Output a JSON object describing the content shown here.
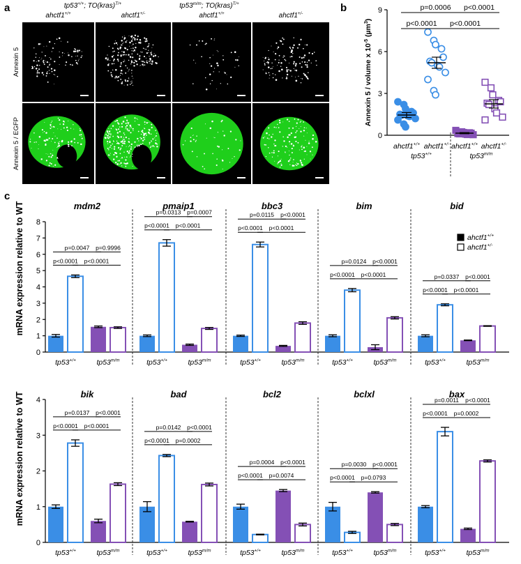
{
  "colors": {
    "blue": "#3a8ee6",
    "purple": "#8450b5",
    "green": "#22e61e",
    "microscopy_bg": "#000000",
    "annexin_white": "#ffffff"
  },
  "panel_labels": [
    "a",
    "b",
    "c"
  ],
  "panel_a": {
    "group_headers": [
      {
        "base": "tp53",
        "sup": "+/+",
        "rest": "; TO(kras)",
        "rest_sup": "T/+"
      },
      {
        "base": "tp53",
        "sup": "m/m",
        "rest": "; TO(kras)",
        "rest_sup": "T/+"
      }
    ],
    "column_headers": [
      {
        "base": "ahctf1",
        "sup": "+/+"
      },
      {
        "base": "ahctf1",
        "sup": "+/-"
      },
      {
        "base": "ahctf1",
        "sup": "+/+"
      },
      {
        "base": "ahctf1",
        "sup": "+/-"
      }
    ],
    "row_labels": [
      "Annexin 5",
      "Annexin 5 / EGFP"
    ]
  },
  "panel_c": {
    "ylabel": "mRNA expression relative to WT",
    "legend": [
      {
        "base": "ahctf1",
        "sup": "+/+",
        "style": "filled"
      },
      {
        "base": "ahctf1",
        "sup": "+/-",
        "style": "open"
      }
    ],
    "xgroups": [
      {
        "base": "tp53",
        "sup": "+/+"
      },
      {
        "base": "tp53",
        "sup": "m/m"
      }
    ]
  },
  "chart_data": [
    {
      "panel": "b",
      "type": "scatter",
      "ylabel": "Annexin 5 / volume x 10",
      "ylabel_sup": "-5",
      "ylabel_unit": " (µm",
      "ylabel_unit_sup": "3",
      "ylabel_close": ")",
      "ylim": [
        0,
        9
      ],
      "yticks": [
        0,
        3,
        6,
        9
      ],
      "categories": [
        {
          "base": "ahctf1",
          "sup": "+/+"
        },
        {
          "base": "ahctf1",
          "sup": "+/-"
        },
        {
          "base": "ahctf1",
          "sup": "+/+"
        },
        {
          "base": "ahctf1",
          "sup": "+/-"
        }
      ],
      "group_labels": [
        {
          "base": "tp53",
          "sup": "+/+"
        },
        {
          "base": "tp53",
          "sup": "m/m"
        }
      ],
      "series": [
        {
          "marker": "circle",
          "fill": "filled",
          "color": "blue",
          "mean": 1.45,
          "sem": 0.18,
          "values": [
            2.4,
            2.2,
            1.9,
            1.7,
            1.6,
            1.5,
            1.45,
            1.4,
            1.35,
            1.2,
            1.1,
            0.8,
            0.6
          ]
        },
        {
          "marker": "circle",
          "fill": "open",
          "color": "blue",
          "mean": 5.2,
          "sem": 0.4,
          "values": [
            7.4,
            6.8,
            6.5,
            6.2,
            5.6,
            5.3,
            5.2,
            5.0,
            4.9,
            4.5,
            4.0,
            3.2,
            2.9
          ]
        },
        {
          "marker": "square",
          "fill": "filled",
          "color": "purple",
          "mean": 0.15,
          "sem": 0.04,
          "values": [
            0.35,
            0.25,
            0.2,
            0.18,
            0.15,
            0.12,
            0.1,
            0.08,
            0.05,
            0.04
          ]
        },
        {
          "marker": "square",
          "fill": "open",
          "color": "purple",
          "mean": 2.25,
          "sem": 0.3,
          "values": [
            3.8,
            3.4,
            2.9,
            2.5,
            2.4,
            2.3,
            2.2,
            1.9,
            1.6,
            1.3,
            1.1
          ]
        }
      ],
      "comparisons": [
        {
          "from": 0,
          "to": 1,
          "label": "p<0.0001",
          "level": 0
        },
        {
          "from": 1,
          "to": 3,
          "label": "p<0.0001",
          "level": 0
        },
        {
          "from": 0,
          "to": 2,
          "label": "p=0.0006",
          "level": 1
        },
        {
          "from": 2,
          "to": 3,
          "label": "p<0.0001",
          "level": 1
        }
      ]
    },
    {
      "panel": "c",
      "type": "bar",
      "gene": "mdm2",
      "ylim": [
        0,
        8
      ],
      "yticks": [
        0,
        1,
        2,
        3,
        4,
        5,
        6,
        7,
        8
      ],
      "values": [
        1.0,
        4.65,
        1.55,
        1.5
      ],
      "errors": [
        0.08,
        0.08,
        0.05,
        0.05
      ],
      "pvalues": [
        "p<0.0001",
        "p<0.0001",
        "p=0.0047",
        "p=0.9996"
      ]
    },
    {
      "panel": "c",
      "type": "bar",
      "gene": "pmaip1",
      "ylim": [
        0,
        8
      ],
      "values": [
        1.0,
        6.7,
        0.45,
        1.45
      ],
      "errors": [
        0.05,
        0.2,
        0.04,
        0.06
      ],
      "pvalues": [
        "p<0.0001",
        "p<0.0001",
        "p=0.0313",
        "p=0.0007"
      ]
    },
    {
      "panel": "c",
      "type": "bar",
      "gene": "bbc3",
      "ylim": [
        0,
        8
      ],
      "values": [
        1.0,
        6.6,
        0.38,
        1.78
      ],
      "errors": [
        0.04,
        0.15,
        0.03,
        0.08
      ],
      "pvalues": [
        "p<0.0001",
        "p<0.0001",
        "p=0.0115",
        "p<0.0001"
      ]
    },
    {
      "panel": "c",
      "type": "bar",
      "gene": "bim",
      "ylim": [
        0,
        8
      ],
      "values": [
        1.0,
        3.8,
        0.3,
        2.1
      ],
      "errors": [
        0.06,
        0.1,
        0.15,
        0.07
      ],
      "pvalues": [
        "p<0.0001",
        "p<0.0001",
        "p=0.0124",
        "p<0.0001"
      ]
    },
    {
      "panel": "c",
      "type": "bar",
      "gene": "bid",
      "ylim": [
        0,
        8
      ],
      "values": [
        1.0,
        2.9,
        0.72,
        1.6
      ],
      "errors": [
        0.06,
        0.06,
        0.02,
        0.02
      ],
      "pvalues": [
        "p<0.0001",
        "p<0.0001",
        "p=0.0337",
        "p<0.0001"
      ]
    },
    {
      "panel": "c",
      "type": "bar",
      "gene": "bik",
      "ylim": [
        0,
        4
      ],
      "yticks": [
        0,
        1,
        2,
        3,
        4
      ],
      "values": [
        1.0,
        2.78,
        0.6,
        1.63
      ],
      "errors": [
        0.05,
        0.09,
        0.05,
        0.04
      ],
      "pvalues": [
        "p<0.0001",
        "p<0.0001",
        "p=0.0137",
        "p<0.0001"
      ]
    },
    {
      "panel": "c",
      "type": "bar",
      "gene": "bad",
      "ylim": [
        0,
        4
      ],
      "values": [
        1.0,
        2.43,
        0.58,
        1.62
      ],
      "errors": [
        0.14,
        0.03,
        0.01,
        0.04
      ],
      "pvalues": [
        "p<0.0001",
        "p=0.0002",
        "p=0.0142",
        "p<0.0001"
      ]
    },
    {
      "panel": "c",
      "type": "bar",
      "gene": "bcl2",
      "ylim": [
        0,
        4
      ],
      "values": [
        1.0,
        0.22,
        1.45,
        0.5
      ],
      "errors": [
        0.07,
        0.01,
        0.03,
        0.04
      ],
      "pvalues": [
        "p<0.0001",
        "p=0.0074",
        "p=0.0004",
        "p<0.0001"
      ]
    },
    {
      "panel": "c",
      "type": "bar",
      "gene": "bclxl",
      "ylim": [
        0,
        4
      ],
      "values": [
        1.0,
        0.28,
        1.4,
        0.5
      ],
      "errors": [
        0.12,
        0.03,
        0.02,
        0.03
      ],
      "pvalues": [
        "p<0.0001",
        "p=0.0793",
        "p=0.0030",
        "p<0.0001"
      ]
    },
    {
      "panel": "c",
      "type": "bar",
      "gene": "bax",
      "ylim": [
        0,
        4
      ],
      "values": [
        1.0,
        3.1,
        0.38,
        2.28
      ],
      "errors": [
        0.03,
        0.12,
        0.02,
        0.03
      ],
      "pvalues": [
        "p<0.0001",
        "p=0.0002",
        "p=0.0011",
        "p<0.0001"
      ]
    }
  ]
}
